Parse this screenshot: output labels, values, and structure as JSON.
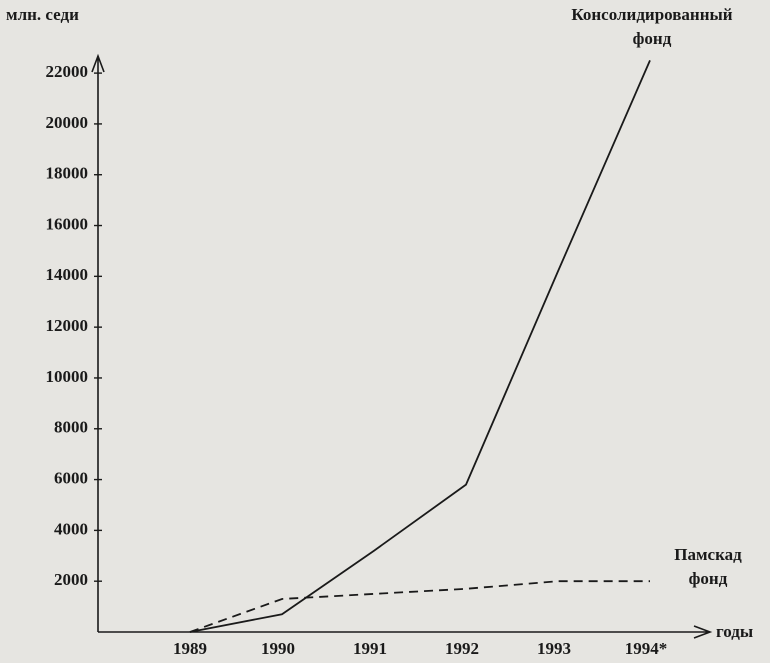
{
  "chart_data": {
    "type": "line",
    "y_label": "млн. седи",
    "x_label": "годы",
    "categories": [
      "1989",
      "1990",
      "1991",
      "1992",
      "1993",
      "1994*"
    ],
    "series": [
      {
        "name": "Консолидированный фонд",
        "color": "#1a1a1a",
        "dash": false,
        "values": [
          0,
          700,
          3200,
          5800,
          14200,
          22500
        ]
      },
      {
        "name": "Памскад фонд",
        "color": "#1a1a1a",
        "dash": true,
        "values": [
          0,
          1300,
          1500,
          1700,
          2000,
          2000
        ]
      }
    ],
    "ylim": [
      0,
      23500
    ],
    "yticks": [
      2000,
      4000,
      6000,
      8000,
      10000,
      12000,
      14000,
      16000,
      18000,
      20000,
      22000
    ],
    "grid": false
  }
}
